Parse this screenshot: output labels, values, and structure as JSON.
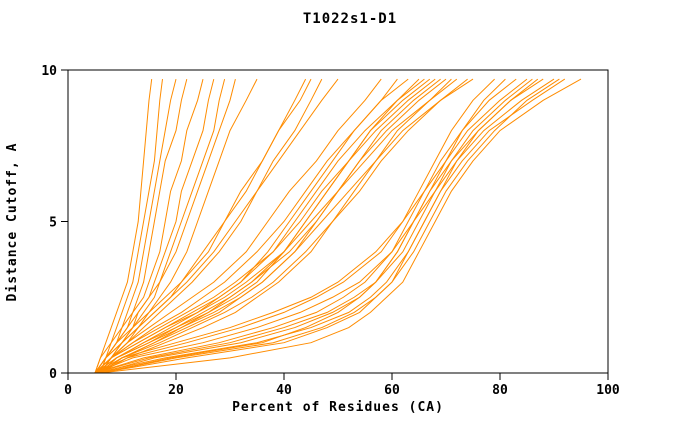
{
  "chart_data": {
    "type": "line",
    "title": "T1022s1-D1",
    "xlabel": "Percent of Residues (CA)",
    "ylabel": "Distance Cutoff, A",
    "xlim": [
      0,
      100
    ],
    "ylim": [
      0,
      10
    ],
    "x_ticks": [
      0,
      20,
      40,
      60,
      80,
      100
    ],
    "y_ticks": [
      0,
      5,
      10
    ],
    "grid": false,
    "legend": "none",
    "line_color": "#ff8c00",
    "series_y": [
      0,
      0.5,
      1,
      1.5,
      2,
      2.5,
      3,
      4,
      5,
      6,
      7,
      8,
      9,
      9.7
    ],
    "series_x": [
      [
        5,
        6,
        7,
        8,
        9,
        10,
        11,
        12,
        13,
        13.5,
        14,
        14.5,
        15,
        15.5
      ],
      [
        5,
        18,
        35,
        45,
        52,
        56,
        59,
        63,
        66,
        69,
        73,
        78,
        86,
        92
      ],
      [
        5,
        9,
        15,
        21,
        27,
        32,
        36,
        42,
        47,
        52,
        57,
        62,
        69,
        75
      ],
      [
        5,
        6,
        8,
        9,
        10,
        11,
        12,
        13,
        14,
        15,
        16,
        16.5,
        17,
        17.5
      ],
      [
        6,
        30,
        45,
        52,
        56,
        59,
        62,
        65,
        68,
        71,
        75,
        80,
        88,
        95
      ],
      [
        6,
        10,
        17,
        23,
        29,
        34,
        38,
        44,
        49,
        54,
        58,
        63,
        69,
        74
      ],
      [
        6,
        7,
        8,
        10,
        11,
        12,
        13,
        14,
        15,
        16,
        17,
        18,
        19,
        20
      ],
      [
        5,
        15,
        30,
        40,
        48,
        53,
        57,
        62,
        65,
        68,
        72,
        77,
        84,
        90
      ],
      [
        5,
        8,
        13,
        18,
        24,
        29,
        33,
        40,
        45,
        50,
        55,
        60,
        67,
        72
      ],
      [
        5,
        7,
        10,
        13,
        16,
        19,
        22,
        27,
        31,
        35,
        39,
        43,
        47,
        50
      ],
      [
        6,
        20,
        38,
        47,
        53,
        57,
        60,
        64,
        67,
        70,
        74,
        79,
        85,
        91
      ],
      [
        6,
        11,
        18,
        25,
        31,
        35,
        39,
        45,
        49,
        53,
        57,
        61,
        67,
        71
      ],
      [
        5,
        7,
        9,
        10,
        12,
        13,
        14,
        15,
        16,
        17,
        18,
        20,
        21,
        22
      ],
      [
        5,
        12,
        25,
        35,
        43,
        49,
        54,
        60,
        64,
        67,
        71,
        76,
        82,
        88
      ],
      [
        5,
        9,
        14,
        20,
        25,
        30,
        34,
        41,
        46,
        50,
        54,
        59,
        65,
        70
      ],
      [
        6,
        7,
        9,
        11,
        12,
        14,
        15,
        17,
        18,
        19,
        21,
        22,
        24,
        25
      ],
      [
        6,
        22,
        40,
        48,
        54,
        57,
        60,
        63,
        66,
        69,
        72,
        76,
        82,
        87
      ],
      [
        6,
        10,
        16,
        22,
        28,
        32,
        36,
        42,
        46,
        50,
        54,
        58,
        64,
        69
      ],
      [
        6,
        8,
        11,
        14,
        17,
        20,
        23,
        28,
        32,
        35,
        38,
        42,
        45,
        47
      ],
      [
        5,
        10,
        20,
        30,
        38,
        45,
        50,
        57,
        62,
        66,
        70,
        74,
        80,
        85
      ],
      [
        5,
        8,
        12,
        17,
        22,
        27,
        31,
        38,
        43,
        47,
        52,
        57,
        63,
        68
      ],
      [
        5,
        7,
        10,
        12,
        13,
        15,
        16,
        18,
        20,
        21,
        23,
        25,
        26,
        27
      ],
      [
        6,
        16,
        32,
        42,
        49,
        54,
        57,
        61,
        64,
        68,
        71,
        75,
        81,
        86
      ],
      [
        6,
        9,
        15,
        20,
        26,
        30,
        34,
        40,
        44,
        48,
        52,
        56,
        62,
        67
      ],
      [
        6,
        8,
        10,
        12,
        14,
        16,
        17,
        19,
        21,
        23,
        25,
        27,
        28,
        29
      ],
      [
        5,
        14,
        28,
        38,
        46,
        51,
        55,
        60,
        63,
        66,
        69,
        73,
        78,
        83
      ],
      [
        5,
        8,
        13,
        18,
        23,
        28,
        32,
        38,
        42,
        46,
        50,
        55,
        61,
        66
      ],
      [
        5,
        7,
        9,
        12,
        15,
        18,
        21,
        25,
        29,
        32,
        36,
        39,
        43,
        45
      ],
      [
        6,
        19,
        36,
        44,
        50,
        54,
        57,
        61,
        64,
        67,
        70,
        73,
        77,
        81
      ],
      [
        6,
        10,
        16,
        21,
        26,
        31,
        35,
        40,
        44,
        48,
        52,
        56,
        61,
        65
      ],
      [
        5,
        7,
        9,
        11,
        13,
        15,
        17,
        20,
        22,
        24,
        26,
        28,
        30,
        31
      ],
      [
        5,
        11,
        22,
        32,
        40,
        46,
        51,
        58,
        62,
        65,
        68,
        71,
        75,
        79
      ],
      [
        5,
        8,
        12,
        16,
        21,
        25,
        29,
        35,
        40,
        44,
        48,
        53,
        58,
        63
      ],
      [
        6,
        8,
        11,
        13,
        15,
        17,
        19,
        22,
        24,
        26,
        28,
        30,
        33,
        35
      ],
      [
        6,
        9,
        14,
        19,
        24,
        28,
        32,
        37,
        41,
        45,
        49,
        53,
        58,
        61
      ],
      [
        6,
        8,
        10,
        13,
        16,
        19,
        21,
        26,
        29,
        33,
        36,
        39,
        42,
        44
      ],
      [
        5,
        8,
        11,
        15,
        19,
        23,
        27,
        33,
        37,
        41,
        46,
        50,
        55,
        58
      ]
    ]
  }
}
